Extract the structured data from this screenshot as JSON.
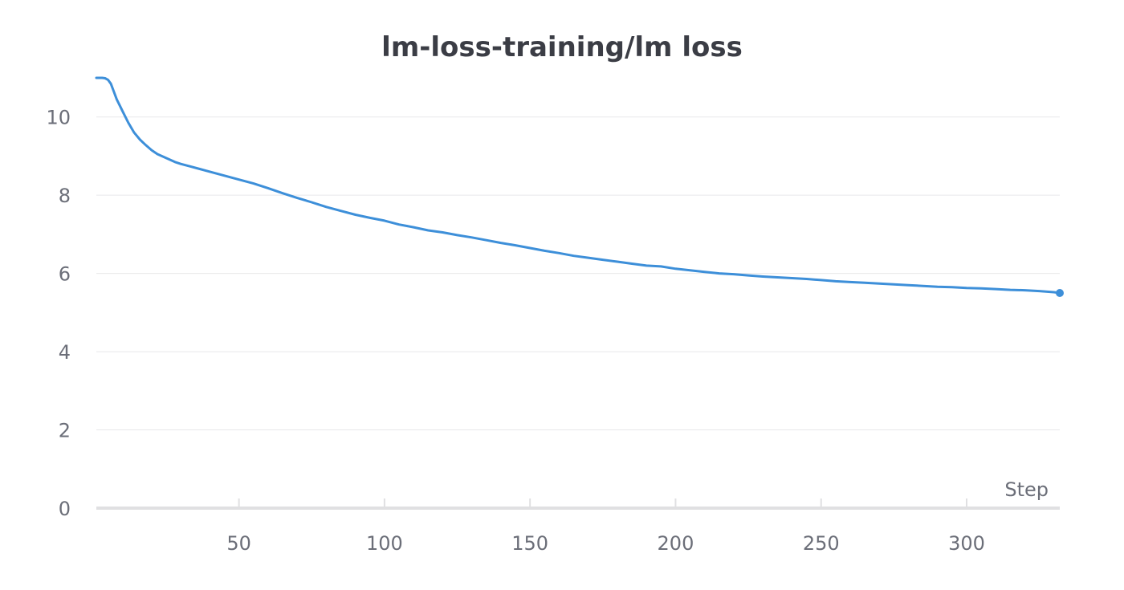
{
  "chart_data": {
    "type": "line",
    "title": "lm-loss-training/lm loss",
    "xlabel": "Step",
    "ylabel": "",
    "xlim": [
      1,
      332
    ],
    "ylim": [
      0,
      11
    ],
    "xticks": [
      50,
      100,
      150,
      200,
      250,
      300
    ],
    "yticks": [
      0,
      2,
      4,
      6,
      8,
      10
    ],
    "grid": true,
    "legend": "none",
    "line_color": "#3d8fd9",
    "grid_color": "#e8e8ea",
    "axis_color": "#e0e0e2",
    "x": [
      1,
      2,
      3,
      4,
      5,
      6,
      7,
      8,
      9,
      10,
      12,
      14,
      16,
      18,
      20,
      22,
      25,
      28,
      30,
      33,
      36,
      40,
      45,
      50,
      55,
      60,
      65,
      70,
      75,
      80,
      85,
      90,
      95,
      100,
      105,
      110,
      115,
      120,
      125,
      130,
      135,
      140,
      145,
      150,
      155,
      160,
      165,
      170,
      175,
      180,
      185,
      190,
      195,
      200,
      205,
      210,
      215,
      220,
      225,
      230,
      235,
      240,
      245,
      250,
      255,
      260,
      265,
      270,
      275,
      280,
      285,
      290,
      295,
      300,
      305,
      310,
      315,
      320,
      325,
      330,
      332
    ],
    "series": [
      {
        "values": [
          11.0,
          11.0,
          11.0,
          10.99,
          10.95,
          10.85,
          10.65,
          10.45,
          10.3,
          10.15,
          9.85,
          9.6,
          9.42,
          9.28,
          9.15,
          9.05,
          8.95,
          8.85,
          8.8,
          8.74,
          8.68,
          8.6,
          8.5,
          8.4,
          8.3,
          8.18,
          8.05,
          7.93,
          7.82,
          7.7,
          7.6,
          7.5,
          7.42,
          7.35,
          7.25,
          7.18,
          7.1,
          7.05,
          6.98,
          6.92,
          6.85,
          6.78,
          6.72,
          6.65,
          6.58,
          6.52,
          6.45,
          6.4,
          6.35,
          6.3,
          6.25,
          6.2,
          6.18,
          6.12,
          6.08,
          6.04,
          6.0,
          5.98,
          5.95,
          5.92,
          5.9,
          5.88,
          5.86,
          5.83,
          5.8,
          5.78,
          5.76,
          5.74,
          5.72,
          5.7,
          5.68,
          5.66,
          5.65,
          5.63,
          5.62,
          5.6,
          5.58,
          5.57,
          5.55,
          5.52,
          5.5
        ]
      }
    ]
  }
}
